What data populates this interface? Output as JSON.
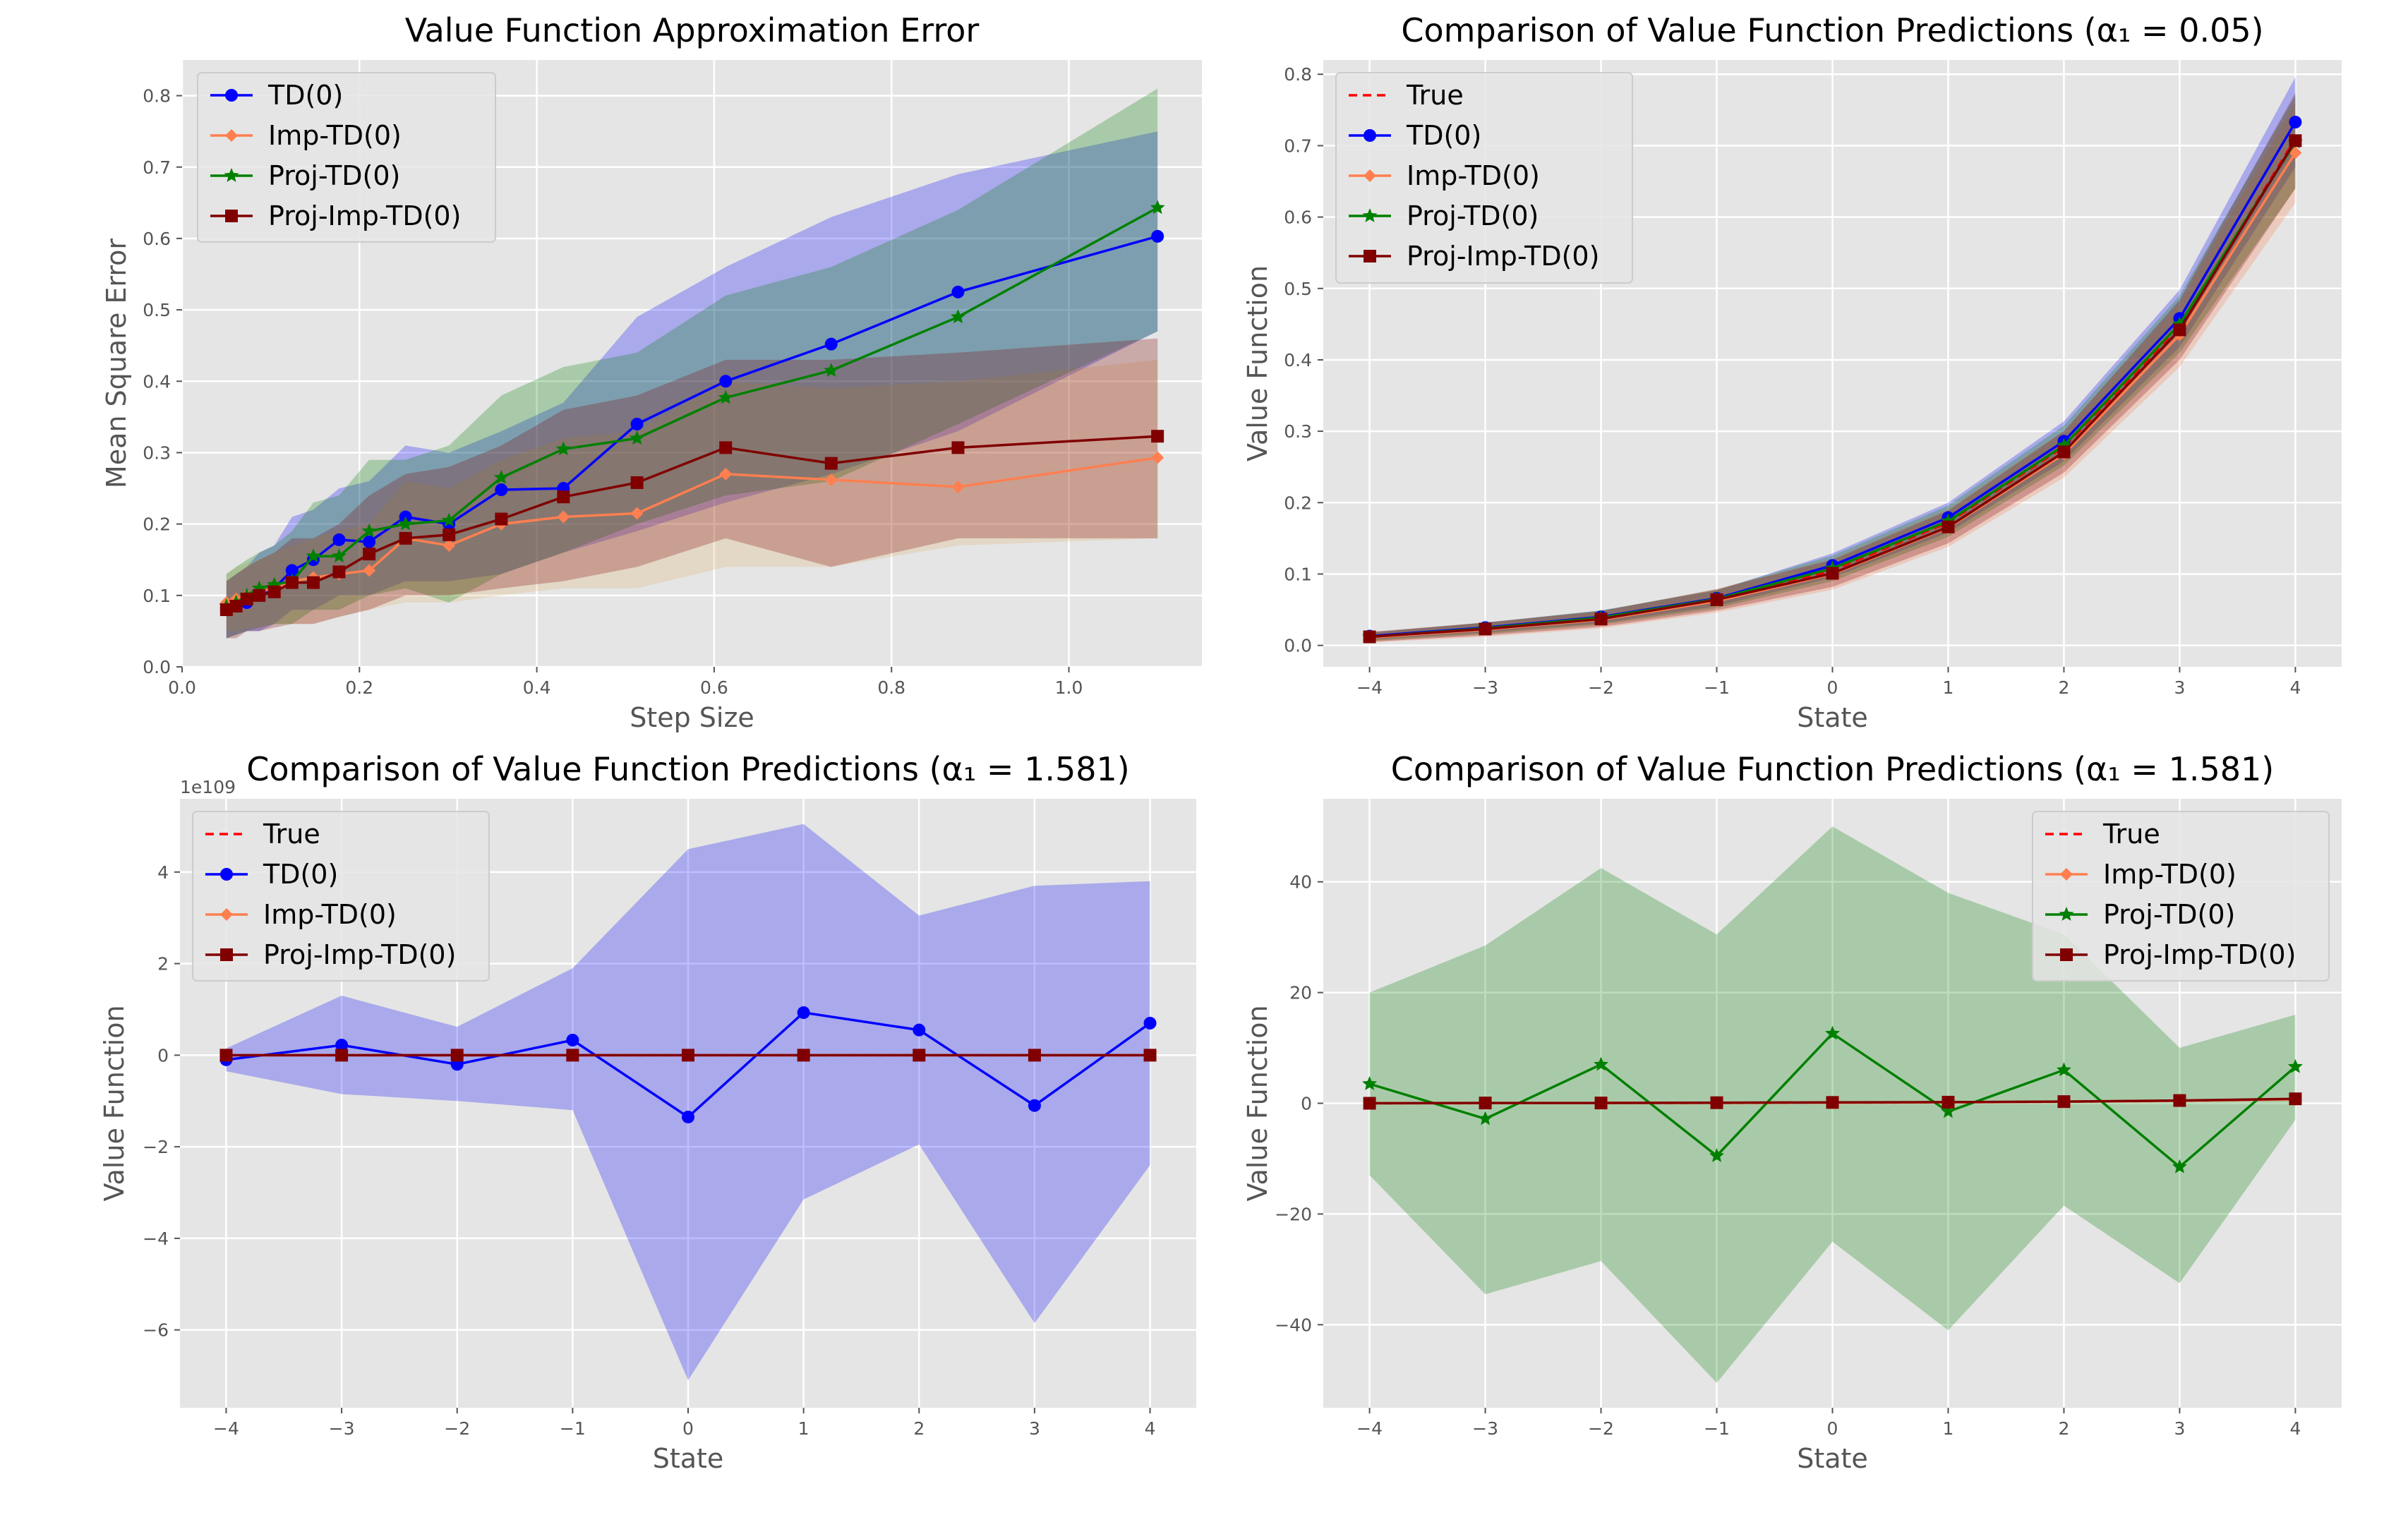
{
  "colors": {
    "TD(0)": "#0000ff",
    "Imp-TD(0)": "#ff7f50",
    "Proj-TD(0)": "#008000",
    "Proj-Imp-TD(0)": "#800000",
    "True": "#ff0000",
    "panel_bg": "#e5e5e5",
    "grid": "#ffffff"
  },
  "chart_data": [
    {
      "id": "p1",
      "type": "line",
      "title": "Value Function Approximation Error",
      "xlabel": "Step Size",
      "ylabel": "Mean Square Error",
      "xlim": [
        0.0,
        1.15
      ],
      "ylim": [
        0.0,
        0.85
      ],
      "xticks": [
        0.0,
        0.2,
        0.4,
        0.6,
        0.8,
        1.0
      ],
      "xtick_labels": [
        "0.0",
        "0.2",
        "0.4",
        "0.6",
        "0.8",
        "1.0"
      ],
      "yticks": [
        0.0,
        0.1,
        0.2,
        0.3,
        0.4,
        0.5,
        0.6,
        0.7,
        0.8
      ],
      "ytick_labels": [
        "0.0",
        "0.1",
        "0.2",
        "0.3",
        "0.4",
        "0.5",
        "0.6",
        "0.7",
        "0.8"
      ],
      "legend": "top-left",
      "legend_entries": [
        "TD(0)",
        "Imp-TD(0)",
        "Proj-TD(0)",
        "Proj-Imp-TD(0)"
      ],
      "x": [
        0.05,
        0.061,
        0.073,
        0.087,
        0.104,
        0.124,
        0.148,
        0.177,
        0.211,
        0.252,
        0.301,
        0.36,
        0.43,
        0.513,
        0.613,
        0.732,
        0.875,
        1.1
      ],
      "series": [
        {
          "name": "TD(0)",
          "marker": "circle",
          "values": [
            0.08,
            0.085,
            0.09,
            0.1,
            0.11,
            0.135,
            0.15,
            0.178,
            0.175,
            0.21,
            0.2,
            0.248,
            0.25,
            0.34,
            0.4,
            0.452,
            0.525,
            0.603
          ],
          "lower": [
            0.04,
            0.045,
            0.05,
            0.05,
            0.06,
            0.08,
            0.08,
            0.1,
            0.1,
            0.12,
            0.12,
            0.13,
            0.16,
            0.19,
            0.23,
            0.27,
            0.33,
            0.47
          ],
          "upper": [
            0.12,
            0.13,
            0.14,
            0.16,
            0.17,
            0.21,
            0.22,
            0.25,
            0.26,
            0.31,
            0.3,
            0.33,
            0.37,
            0.49,
            0.56,
            0.63,
            0.69,
            0.75
          ]
        },
        {
          "name": "Imp-TD(0)",
          "marker": "diamond",
          "values": [
            0.09,
            0.095,
            0.1,
            0.105,
            0.11,
            0.12,
            0.125,
            0.13,
            0.135,
            0.18,
            0.17,
            0.2,
            0.21,
            0.215,
            0.27,
            0.262,
            0.252,
            0.293
          ],
          "lower": [
            0.05,
            0.05,
            0.055,
            0.055,
            0.06,
            0.06,
            0.06,
            0.07,
            0.08,
            0.09,
            0.09,
            0.1,
            0.11,
            0.11,
            0.14,
            0.14,
            0.17,
            0.18
          ],
          "upper": [
            0.13,
            0.14,
            0.145,
            0.15,
            0.16,
            0.17,
            0.18,
            0.19,
            0.2,
            0.26,
            0.25,
            0.29,
            0.32,
            0.33,
            0.4,
            0.39,
            0.4,
            0.43
          ]
        },
        {
          "name": "Proj-TD(0)",
          "marker": "star",
          "values": [
            0.085,
            0.09,
            0.1,
            0.11,
            0.115,
            0.12,
            0.155,
            0.155,
            0.19,
            0.2,
            0.205,
            0.265,
            0.305,
            0.32,
            0.377,
            0.415,
            0.49,
            0.643
          ],
          "lower": [
            0.04,
            0.045,
            0.05,
            0.055,
            0.06,
            0.06,
            0.08,
            0.08,
            0.1,
            0.11,
            0.09,
            0.13,
            0.16,
            0.2,
            0.24,
            0.26,
            0.34,
            0.47
          ],
          "upper": [
            0.13,
            0.14,
            0.15,
            0.16,
            0.17,
            0.19,
            0.23,
            0.24,
            0.29,
            0.29,
            0.31,
            0.38,
            0.42,
            0.44,
            0.52,
            0.56,
            0.64,
            0.81
          ]
        },
        {
          "name": "Proj-Imp-TD(0)",
          "marker": "square",
          "values": [
            0.08,
            0.085,
            0.095,
            0.1,
            0.105,
            0.118,
            0.118,
            0.133,
            0.158,
            0.18,
            0.185,
            0.207,
            0.238,
            0.258,
            0.307,
            0.285,
            0.307,
            0.323
          ],
          "lower": [
            0.04,
            0.04,
            0.05,
            0.05,
            0.055,
            0.06,
            0.06,
            0.07,
            0.08,
            0.1,
            0.1,
            0.11,
            0.12,
            0.14,
            0.18,
            0.14,
            0.18,
            0.18
          ],
          "upper": [
            0.12,
            0.13,
            0.14,
            0.15,
            0.16,
            0.18,
            0.18,
            0.2,
            0.24,
            0.27,
            0.28,
            0.31,
            0.36,
            0.38,
            0.43,
            0.43,
            0.44,
            0.46
          ]
        }
      ],
      "band_overrides": {
        "Imp-TD(0)": "#e0b070"
      }
    },
    {
      "id": "p2",
      "type": "line",
      "title": "Comparison of Value Function Predictions (α₁ = 0.05)",
      "xlabel": "State",
      "ylabel": "Value Function",
      "xlim": [
        -4.4,
        4.4
      ],
      "ylim": [
        -0.03,
        0.82
      ],
      "xticks": [
        -4,
        -3,
        -2,
        -1,
        0,
        1,
        2,
        3,
        4
      ],
      "xtick_labels": [
        "−4",
        "−3",
        "−2",
        "−1",
        "0",
        "1",
        "2",
        "3",
        "4"
      ],
      "yticks": [
        0.0,
        0.1,
        0.2,
        0.3,
        0.4,
        0.5,
        0.6,
        0.7,
        0.8
      ],
      "ytick_labels": [
        "0.0",
        "0.1",
        "0.2",
        "0.3",
        "0.4",
        "0.5",
        "0.6",
        "0.7",
        "0.8"
      ],
      "legend": "top-left",
      "legend_entries": [
        "True",
        "TD(0)",
        "Imp-TD(0)",
        "Proj-TD(0)",
        "Proj-Imp-TD(0)"
      ],
      "x": [
        -4,
        -3,
        -2,
        -1,
        0,
        1,
        2,
        3,
        4
      ],
      "series": [
        {
          "name": "True",
          "marker": "none",
          "dashed": true,
          "values": [
            0.012,
            0.023,
            0.038,
            0.064,
            0.105,
            0.172,
            0.278,
            0.445,
            0.71
          ]
        },
        {
          "name": "TD(0)",
          "marker": "circle",
          "values": [
            0.013,
            0.025,
            0.04,
            0.066,
            0.112,
            0.179,
            0.286,
            0.458,
            0.733
          ],
          "lower": [
            0.008,
            0.018,
            0.031,
            0.055,
            0.095,
            0.158,
            0.258,
            0.418,
            0.67
          ],
          "upper": [
            0.018,
            0.032,
            0.049,
            0.077,
            0.129,
            0.2,
            0.314,
            0.498,
            0.796
          ]
        },
        {
          "name": "Imp-TD(0)",
          "marker": "diamond",
          "values": [
            0.011,
            0.022,
            0.036,
            0.062,
            0.1,
            0.165,
            0.268,
            0.435,
            0.69
          ],
          "lower": [
            0.004,
            0.012,
            0.024,
            0.046,
            0.078,
            0.138,
            0.235,
            0.39,
            0.62
          ],
          "upper": [
            0.018,
            0.032,
            0.048,
            0.078,
            0.122,
            0.192,
            0.301,
            0.48,
            0.76
          ]
        },
        {
          "name": "Proj-TD(0)",
          "marker": "star",
          "values": [
            0.012,
            0.024,
            0.039,
            0.065,
            0.108,
            0.174,
            0.28,
            0.45,
            0.705
          ],
          "lower": [
            0.006,
            0.016,
            0.029,
            0.052,
            0.09,
            0.152,
            0.252,
            0.41,
            0.64
          ],
          "upper": [
            0.018,
            0.032,
            0.049,
            0.078,
            0.126,
            0.196,
            0.308,
            0.49,
            0.77
          ]
        },
        {
          "name": "Proj-Imp-TD(0)",
          "marker": "square",
          "values": [
            0.012,
            0.023,
            0.037,
            0.064,
            0.101,
            0.166,
            0.271,
            0.442,
            0.707
          ],
          "lower": [
            0.005,
            0.014,
            0.026,
            0.049,
            0.082,
            0.143,
            0.242,
            0.4,
            0.64
          ],
          "upper": [
            0.019,
            0.032,
            0.048,
            0.079,
            0.12,
            0.189,
            0.3,
            0.484,
            0.774
          ]
        }
      ]
    },
    {
      "id": "p3",
      "type": "line",
      "title": "Comparison of Value Function Predictions (α₁ = 1.581)",
      "xlabel": "State",
      "ylabel": "Value Function",
      "offset_text": "1e109",
      "xlim": [
        -4.4,
        4.4
      ],
      "ylim": [
        -7.7,
        5.6
      ],
      "xticks": [
        -4,
        -3,
        -2,
        -1,
        0,
        1,
        2,
        3,
        4
      ],
      "xtick_labels": [
        "−4",
        "−3",
        "−2",
        "−1",
        "0",
        "1",
        "2",
        "3",
        "4"
      ],
      "yticks": [
        -6,
        -4,
        -2,
        0,
        2,
        4
      ],
      "ytick_labels": [
        "−6",
        "−4",
        "−2",
        "0",
        "2",
        "4"
      ],
      "legend": "top-left",
      "legend_entries": [
        "True",
        "TD(0)",
        "Imp-TD(0)",
        "Proj-Imp-TD(0)"
      ],
      "x": [
        -4,
        -3,
        -2,
        -1,
        0,
        1,
        2,
        3,
        4
      ],
      "series": [
        {
          "name": "True",
          "marker": "none",
          "dashed": true,
          "values": [
            0,
            0,
            0,
            0,
            0,
            0,
            0,
            0,
            0
          ]
        },
        {
          "name": "TD(0)",
          "marker": "circle",
          "values": [
            -0.1,
            0.22,
            -0.2,
            0.33,
            -1.35,
            0.93,
            0.55,
            -1.1,
            0.7
          ],
          "lower": [
            -0.35,
            -0.85,
            -1.0,
            -1.2,
            -7.1,
            -3.15,
            -1.95,
            -5.85,
            -2.4
          ],
          "upper": [
            0.15,
            1.3,
            0.62,
            1.9,
            4.5,
            5.05,
            3.05,
            3.7,
            3.8
          ]
        },
        {
          "name": "Imp-TD(0)",
          "marker": "diamond",
          "values": [
            0,
            0,
            0,
            0,
            0,
            0,
            0,
            0,
            0
          ]
        },
        {
          "name": "Proj-Imp-TD(0)",
          "marker": "square",
          "values": [
            0,
            0,
            0,
            0,
            0,
            0,
            0,
            0,
            0
          ]
        }
      ]
    },
    {
      "id": "p4",
      "type": "line",
      "title": "Comparison of Value Function Predictions (α₁ = 1.581)",
      "xlabel": "State",
      "ylabel": "Value Function",
      "xlim": [
        -4.4,
        4.4
      ],
      "ylim": [
        -55,
        55
      ],
      "xticks": [
        -4,
        -3,
        -2,
        -1,
        0,
        1,
        2,
        3,
        4
      ],
      "xtick_labels": [
        "−4",
        "−3",
        "−2",
        "−1",
        "0",
        "1",
        "2",
        "3",
        "4"
      ],
      "yticks": [
        -40,
        -20,
        0,
        20,
        40
      ],
      "ytick_labels": [
        "−40",
        "−20",
        "0",
        "20",
        "40"
      ],
      "legend": "top-right",
      "legend_entries": [
        "True",
        "Imp-TD(0)",
        "Proj-TD(0)",
        "Proj-Imp-TD(0)"
      ],
      "x": [
        -4,
        -3,
        -2,
        -1,
        0,
        1,
        2,
        3,
        4
      ],
      "series": [
        {
          "name": "True",
          "marker": "none",
          "dashed": true,
          "values": [
            0.01,
            0.02,
            0.04,
            0.06,
            0.1,
            0.17,
            0.28,
            0.45,
            0.71
          ]
        },
        {
          "name": "Imp-TD(0)",
          "marker": "diamond",
          "values": [
            0.01,
            0.02,
            0.04,
            0.06,
            0.1,
            0.17,
            0.28,
            0.44,
            0.69
          ]
        },
        {
          "name": "Proj-TD(0)",
          "marker": "star",
          "values": [
            3.5,
            -2.8,
            7.0,
            -9.5,
            12.6,
            -1.5,
            6.0,
            -11.5,
            6.6
          ],
          "lower": [
            -13.0,
            -34.5,
            -28.5,
            -50.5,
            -25.0,
            -41.0,
            -18.5,
            -32.5,
            -3.0
          ],
          "upper": [
            20.0,
            28.5,
            42.5,
            30.5,
            50.0,
            38.0,
            30.5,
            10.0,
            16.0
          ]
        },
        {
          "name": "Proj-Imp-TD(0)",
          "marker": "square",
          "values": [
            0.0,
            0.05,
            0.05,
            0.1,
            0.15,
            0.2,
            0.3,
            0.5,
            0.8
          ]
        }
      ]
    }
  ]
}
